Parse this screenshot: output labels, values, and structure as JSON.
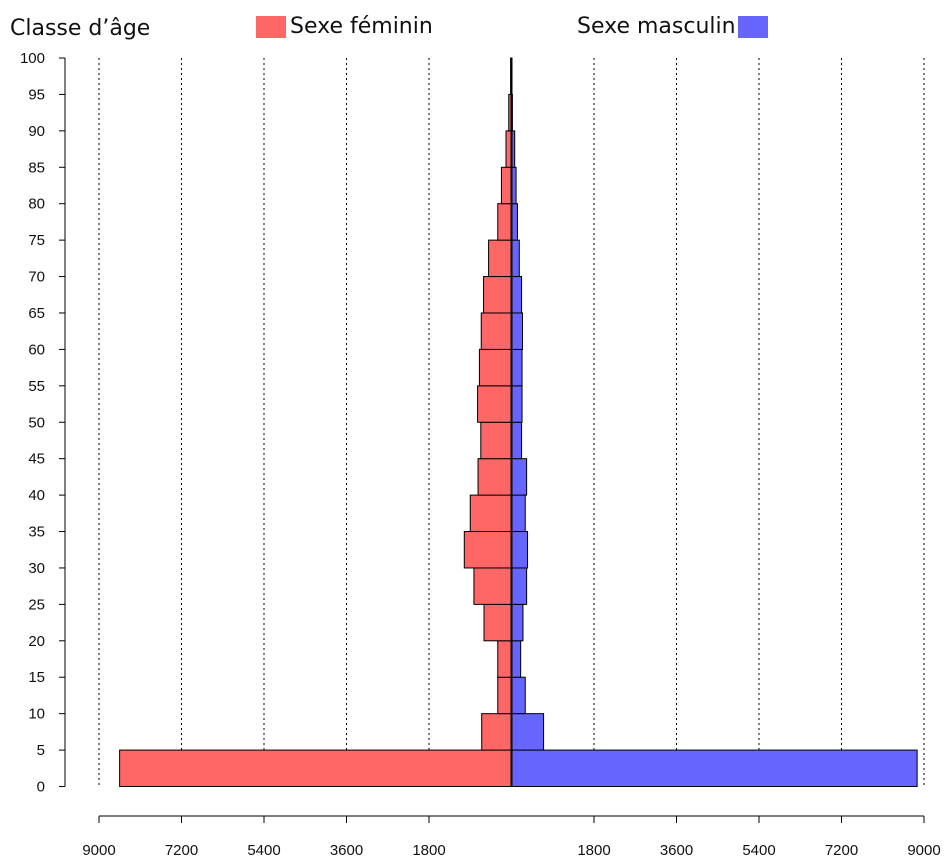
{
  "chart_data": {
    "type": "bar",
    "orientation": "horizontal",
    "subtype": "population-pyramid",
    "ylabel": "Classe d’âge",
    "age_groups": [
      {
        "from": 0,
        "to": 5
      },
      {
        "from": 5,
        "to": 10
      },
      {
        "from": 10,
        "to": 15
      },
      {
        "from": 15,
        "to": 20
      },
      {
        "from": 20,
        "to": 25
      },
      {
        "from": 25,
        "to": 30
      },
      {
        "from": 30,
        "to": 35
      },
      {
        "from": 35,
        "to": 40
      },
      {
        "from": 40,
        "to": 45
      },
      {
        "from": 45,
        "to": 50
      },
      {
        "from": 50,
        "to": 55
      },
      {
        "from": 55,
        "to": 60
      },
      {
        "from": 60,
        "to": 65
      },
      {
        "from": 65,
        "to": 70
      },
      {
        "from": 70,
        "to": 75
      },
      {
        "from": 75,
        "to": 80
      },
      {
        "from": 80,
        "to": 85
      },
      {
        "from": 85,
        "to": 90
      },
      {
        "from": 90,
        "to": 95
      },
      {
        "from": 95,
        "to": 100
      }
    ],
    "series": [
      {
        "name": "Sexe féminin",
        "color": "#ff6666",
        "side": "left",
        "values": [
          8550,
          650,
          300,
          300,
          600,
          820,
          1030,
          900,
          730,
          670,
          740,
          700,
          660,
          610,
          500,
          300,
          220,
          120,
          60,
          20
        ]
      },
      {
        "name": "Sexe masculin",
        "color": "#6666ff",
        "side": "right",
        "values": [
          8850,
          700,
          300,
          200,
          250,
          330,
          350,
          300,
          330,
          220,
          230,
          230,
          240,
          220,
          170,
          130,
          100,
          70,
          20,
          10
        ]
      }
    ],
    "x_ticks_left": [
      "9000",
      "7200",
      "5400",
      "3600",
      "1800"
    ],
    "x_ticks_right": [
      "1800",
      "3600",
      "5400",
      "7200",
      "9000"
    ],
    "x_tick_values": [
      1800,
      3600,
      5400,
      7200,
      9000
    ],
    "y_ticks": [
      "0",
      "5",
      "10",
      "15",
      "20",
      "25",
      "30",
      "35",
      "40",
      "45",
      "50",
      "55",
      "60",
      "65",
      "70",
      "75",
      "80",
      "85",
      "90",
      "95",
      "100"
    ],
    "xlim": [
      -9000,
      9000
    ],
    "ylim": [
      0,
      100
    ],
    "grid": "vertical-dotted",
    "legend": "top"
  }
}
